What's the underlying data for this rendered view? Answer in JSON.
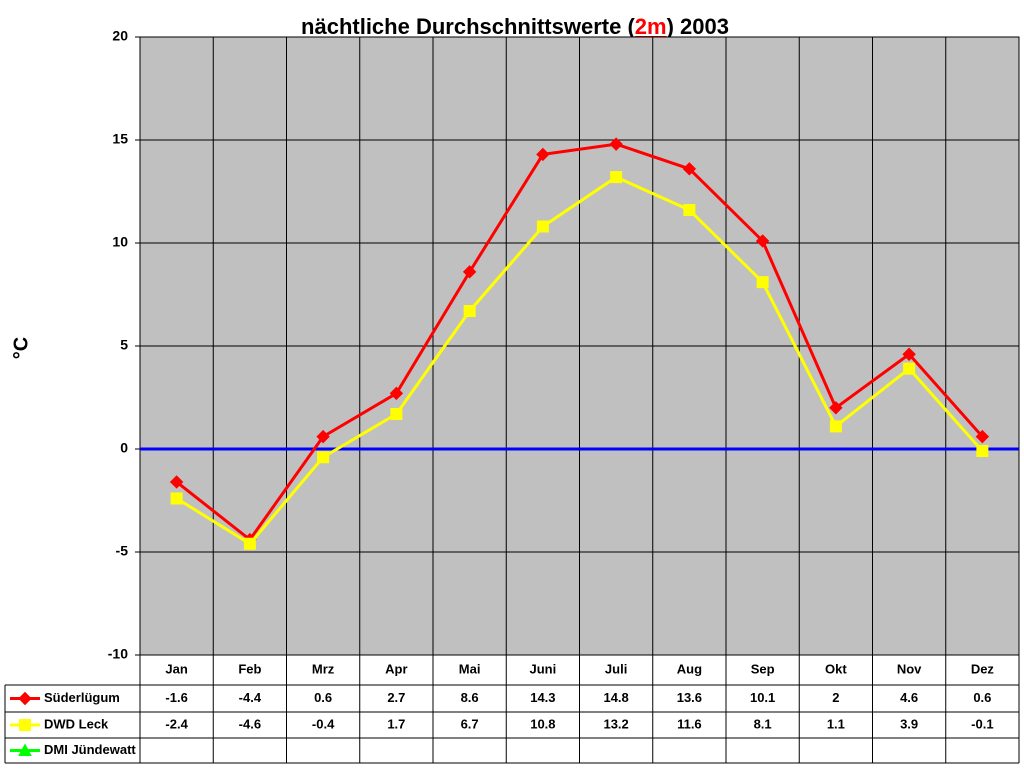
{
  "chart_data": {
    "type": "line",
    "title": [
      "nächtliche Durchschnittswerte (",
      "2m",
      ") 2003"
    ],
    "y_label": "°C",
    "categories": [
      "Jan",
      "Feb",
      "Mrz",
      "Apr",
      "Mai",
      "Juni",
      "Juli",
      "Aug",
      "Sep",
      "Okt",
      "Nov",
      "Dez"
    ],
    "series": [
      {
        "name": "Süderlügum",
        "color": "#ff0000",
        "marker": "diamond",
        "values": [
          -1.6,
          -4.4,
          0.6,
          2.7,
          8.6,
          14.3,
          14.8,
          13.6,
          10.1,
          2,
          4.6,
          0.6
        ]
      },
      {
        "name": "DWD Leck",
        "color": "#ffff00",
        "marker": "square",
        "values": [
          -2.4,
          -4.6,
          -0.4,
          1.7,
          6.7,
          10.8,
          13.2,
          11.6,
          8.1,
          1.1,
          3.9,
          -0.1
        ]
      },
      {
        "name": "DMI Jündewatt",
        "color": "#00ff00",
        "marker": "triangle",
        "values": [
          null,
          null,
          null,
          null,
          null,
          null,
          null,
          null,
          null,
          null,
          null,
          null
        ]
      }
    ],
    "ylim": [
      -10,
      20
    ],
    "yticks": [
      -10,
      -5,
      0,
      5,
      10,
      15,
      20
    ],
    "grid": true,
    "plot_background": "#c0c0c0",
    "zero_line_color": "#0000ff",
    "legend": "data-table"
  }
}
